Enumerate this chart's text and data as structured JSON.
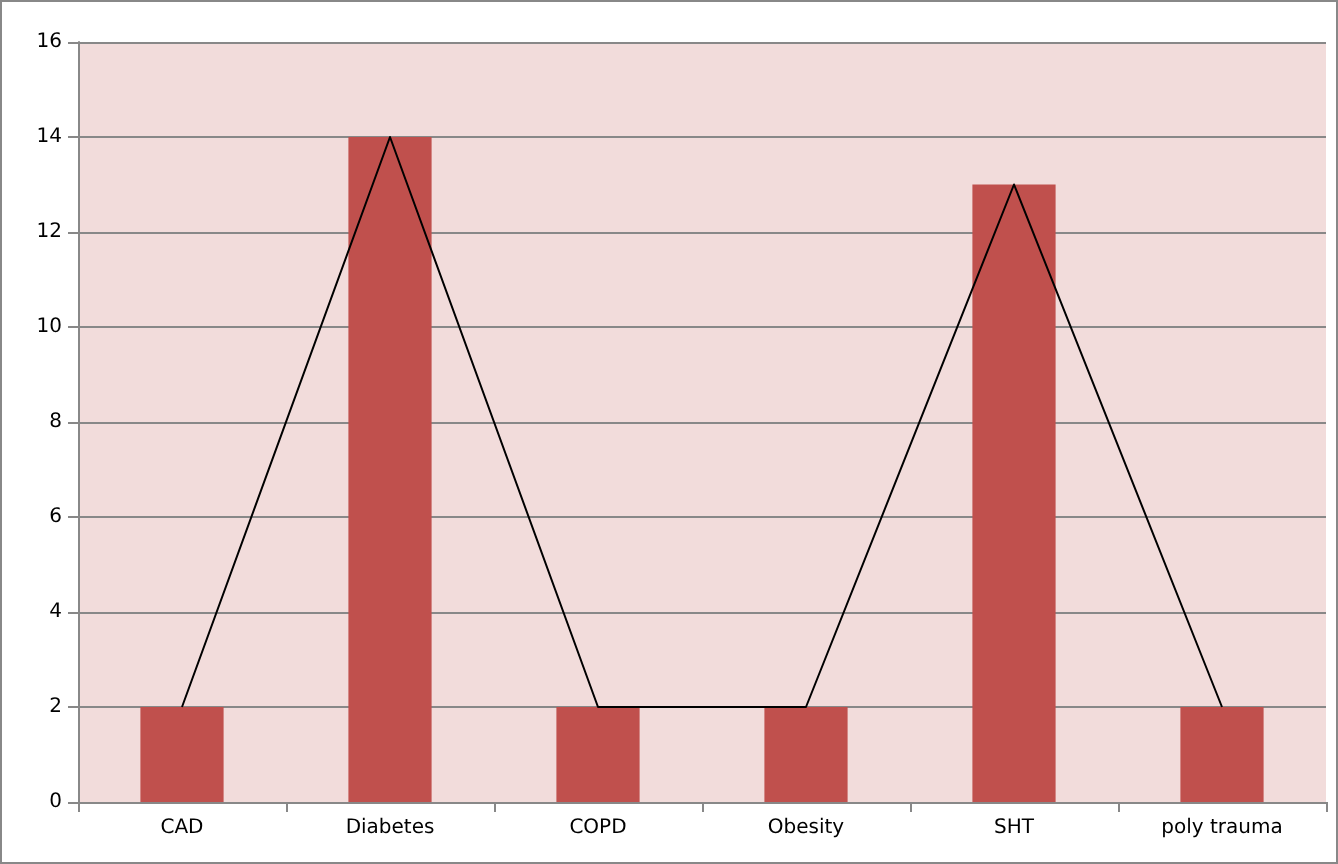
{
  "chart_data": {
    "type": "bar",
    "categories": [
      "CAD",
      "Diabetes",
      "COPD",
      "Obesity",
      "SHT",
      "poly trauma"
    ],
    "series": [
      {
        "color": "#c0504d",
        "values": [
          2,
          14,
          2,
          2,
          13,
          2
        ]
      },
      {
        "type": "line",
        "color": "#000000",
        "values": [
          2,
          14,
          2,
          2,
          13,
          2
        ]
      }
    ],
    "ylim": [
      0,
      16
    ],
    "yticks": [
      0,
      2,
      4,
      6,
      8,
      10,
      12,
      14,
      16
    ],
    "grid": "y",
    "marker": "none"
  }
}
